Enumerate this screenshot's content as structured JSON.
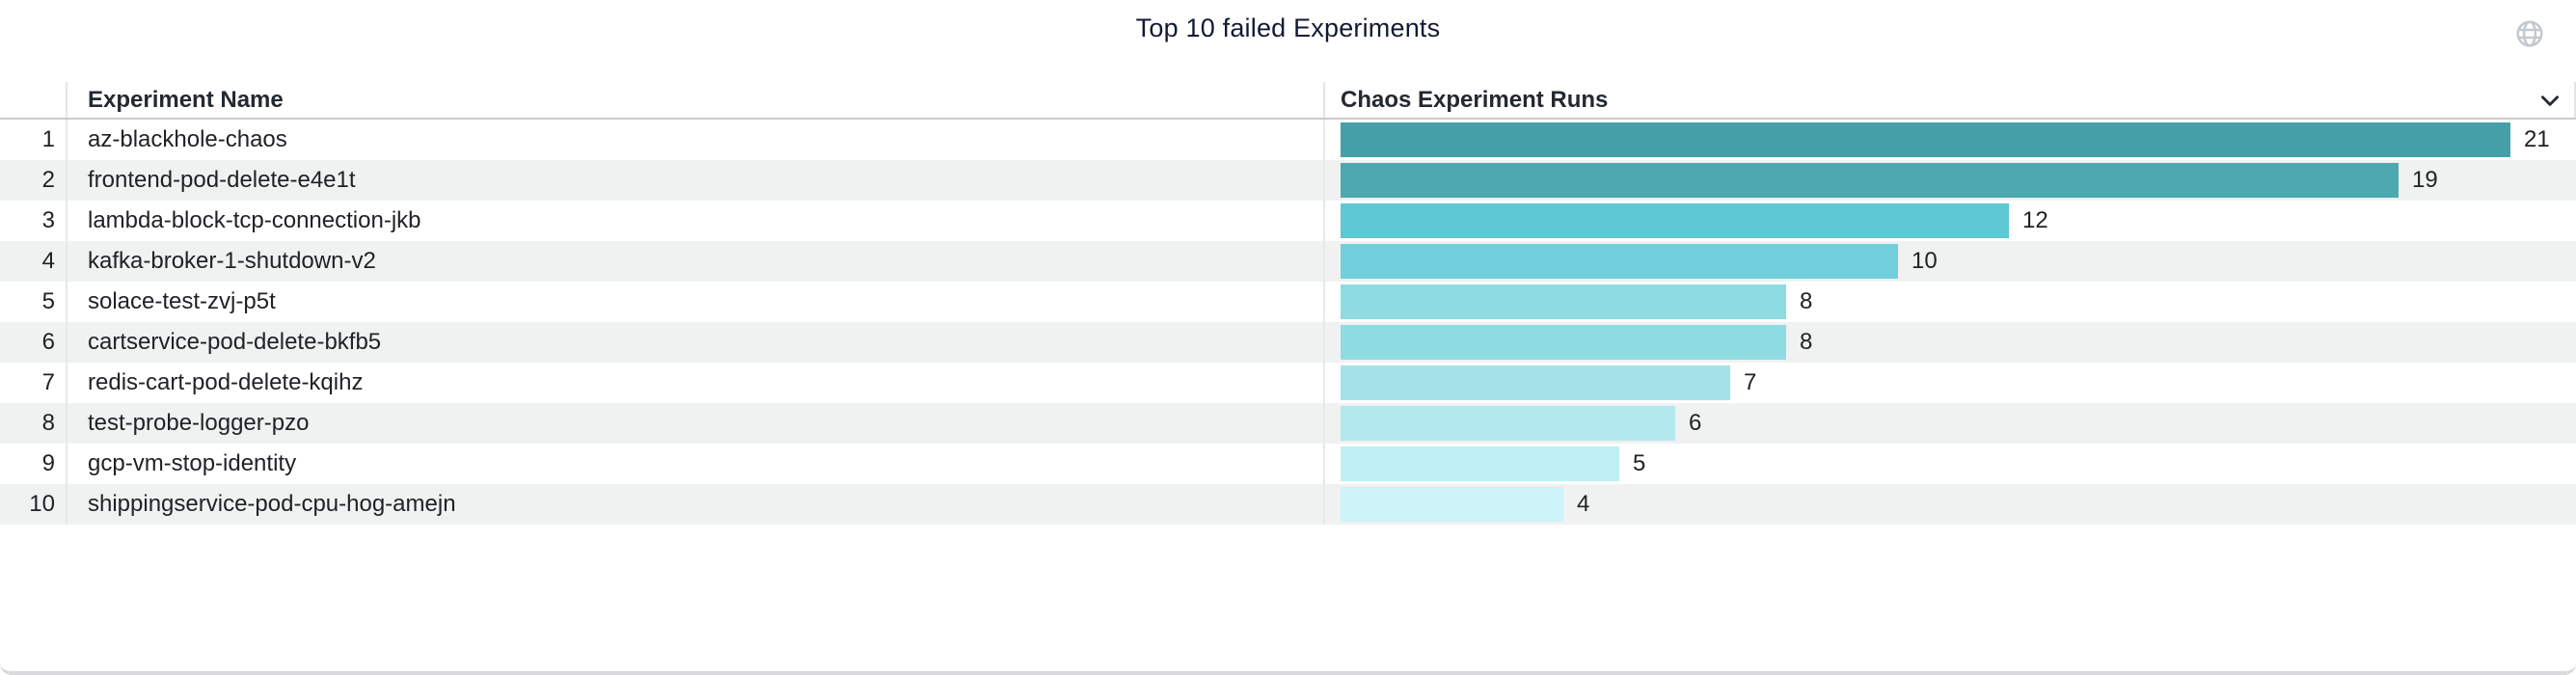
{
  "panel": {
    "title": "Top 10 failed Experiments",
    "globe_icon": "panel-link-globe-icon",
    "globe_color": "#C4C9CE",
    "chevron_color": "#24292E",
    "bottom_edge_color": "#D9DADB"
  },
  "table": {
    "headers": {
      "index": "",
      "name": "Experiment Name",
      "runs": "Chaos Experiment Runs"
    },
    "stripe_color": "#F0F1F1",
    "rows": [
      {
        "rank": "1",
        "name": "az-blackhole-chaos",
        "value": 21,
        "label": "21",
        "color": "#459FA7"
      },
      {
        "rank": "2",
        "name": "frontend-pod-delete-e4e1t",
        "value": 19,
        "label": "19",
        "color": "#4EA8B0"
      },
      {
        "rank": "3",
        "name": "lambda-block-tcp-connection-jkb",
        "value": 12,
        "label": "12",
        "color": "#5EC8D4"
      },
      {
        "rank": "4",
        "name": "kafka-broker-1-shutdown-v2",
        "value": 10,
        "label": "10",
        "color": "#70CFDA"
      },
      {
        "rank": "5",
        "name": "solace-test-zvj-p5t",
        "value": 8,
        "label": "8",
        "color": "#8FDBE2"
      },
      {
        "rank": "6",
        "name": "cartservice-pod-delete-bkfb5",
        "value": 8,
        "label": "8",
        "color": "#8FDBE2"
      },
      {
        "rank": "7",
        "name": "redis-cart-pod-delete-kqihz",
        "value": 7,
        "label": "7",
        "color": "#A3E2E8"
      },
      {
        "rank": "8",
        "name": "test-probe-logger-pzo",
        "value": 6,
        "label": "6",
        "color": "#B3E9EE"
      },
      {
        "rank": "9",
        "name": "gcp-vm-stop-identity",
        "value": 5,
        "label": "5",
        "color": "#BFEEF3"
      },
      {
        "rank": "10",
        "name": "shippingservice-pod-cpu-hog-amejn",
        "value": 4,
        "label": "4",
        "color": "#CDF4F8"
      }
    ]
  },
  "chart_data": {
    "type": "bar",
    "orientation": "horizontal",
    "title": "Top 10 failed Experiments",
    "categories": [
      "az-blackhole-chaos",
      "frontend-pod-delete-e4e1t",
      "lambda-block-tcp-connection-jkb",
      "kafka-broker-1-shutdown-v2",
      "solace-test-zvj-p5t",
      "cartservice-pod-delete-bkfb5",
      "redis-cart-pod-delete-kqihz",
      "test-probe-logger-pzo",
      "gcp-vm-stop-identity",
      "shippingservice-pod-cpu-hog-amejn"
    ],
    "values": [
      21,
      19,
      12,
      10,
      8,
      8,
      7,
      6,
      5,
      4
    ],
    "xlabel": "Chaos Experiment Runs",
    "ylabel": "Experiment Name",
    "xlim": [
      0,
      21
    ],
    "grid": false,
    "legend": false,
    "value_labels": true,
    "color_scale": [
      "#CDF4F8",
      "#459FA7"
    ]
  }
}
